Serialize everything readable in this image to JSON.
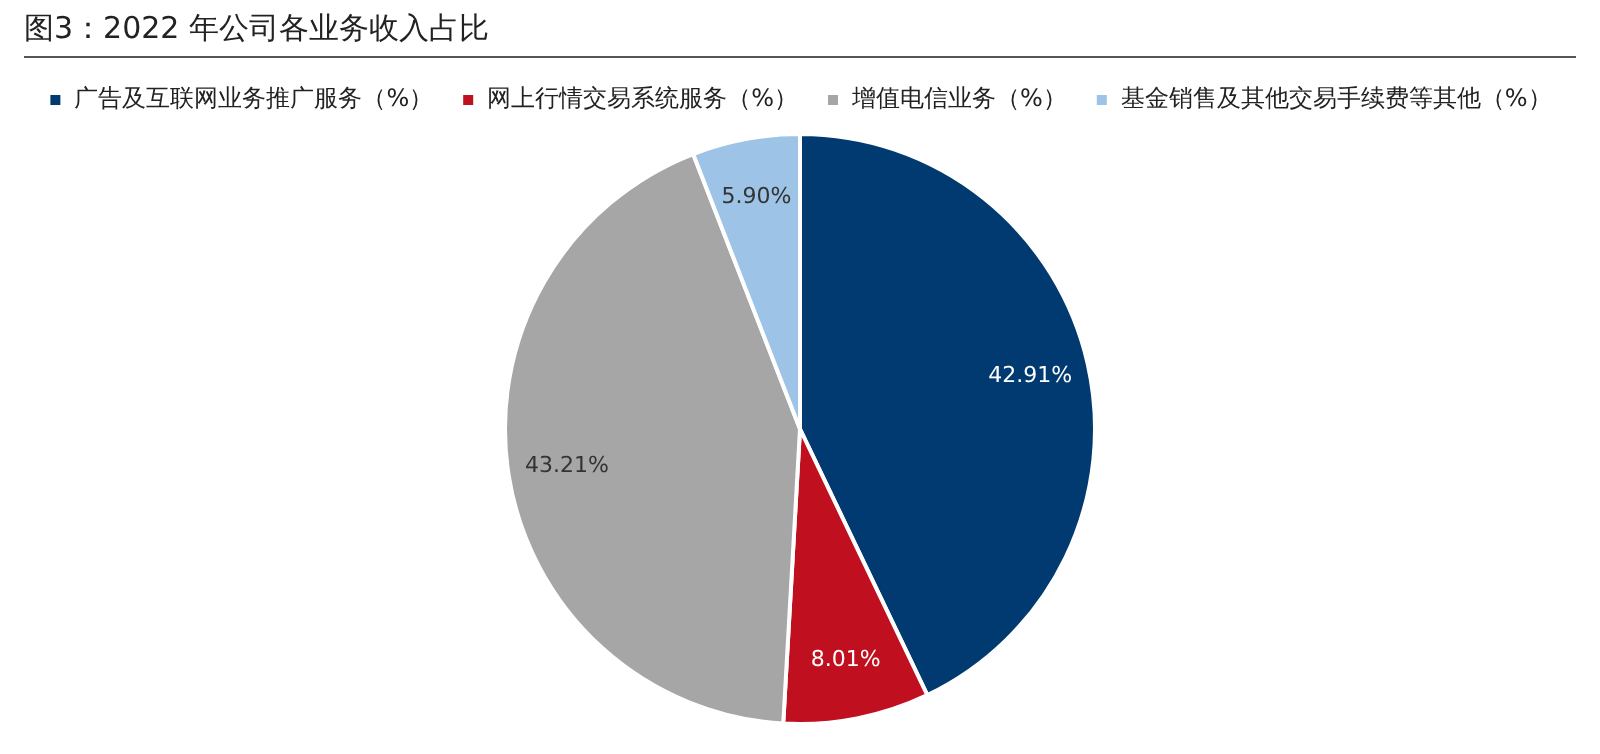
{
  "chart_data": {
    "type": "pie",
    "title": "图3：2022 年公司各业务收入占比",
    "categories": [
      "广告及互联网业务推广服务（%）",
      "网上行情交易系统服务（%）",
      "增值电信业务（%）",
      "基金销售及其他交易手续费等其他（%）"
    ],
    "values": [
      42.91,
      8.01,
      43.21,
      5.9
    ],
    "colors": [
      "#003a70",
      "#c00f1e",
      "#a6a6a6",
      "#9dc3e6"
    ],
    "value_labels": [
      "42.91%",
      "8.01%",
      "43.21%",
      "5.90%"
    ],
    "legend": "top"
  }
}
